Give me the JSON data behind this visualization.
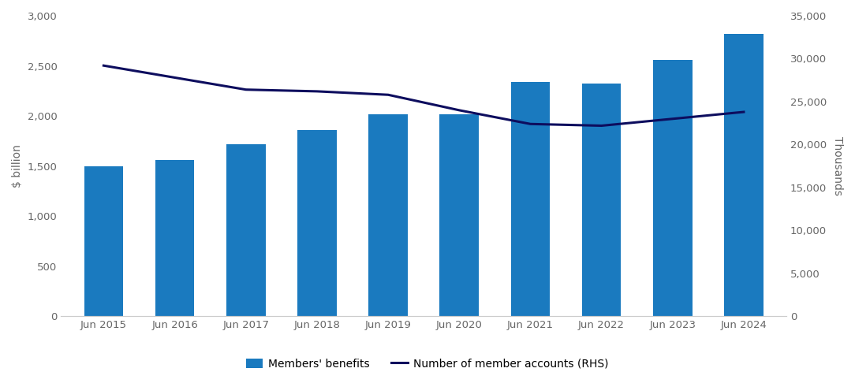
{
  "categories": [
    "Jun 2015",
    "Jun 2016",
    "Jun 2017",
    "Jun 2018",
    "Jun 2019",
    "Jun 2020",
    "Jun 2021",
    "Jun 2022",
    "Jun 2023",
    "Jun 2024"
  ],
  "bar_values": [
    1500,
    1560,
    1720,
    1860,
    2020,
    2020,
    2340,
    2320,
    2560,
    2820
  ],
  "line_values": [
    29200,
    27800,
    26400,
    26200,
    25800,
    24000,
    22400,
    22200,
    23000,
    23800
  ],
  "bar_color": "#1a7abf",
  "line_color": "#0d0d5e",
  "bar_label": "Members' benefits",
  "line_label": "Number of member accounts (RHS)",
  "ylabel_left": "$ billion",
  "ylabel_right": "Thousands",
  "ylim_left": [
    0,
    3000
  ],
  "ylim_right": [
    0,
    35000
  ],
  "yticks_left": [
    0,
    500,
    1000,
    1500,
    2000,
    2500,
    3000
  ],
  "yticks_right": [
    0,
    5000,
    10000,
    15000,
    20000,
    25000,
    30000,
    35000
  ],
  "background_color": "#ffffff",
  "tick_color": "#666666",
  "spine_color": "#cccccc",
  "label_fontsize": 10,
  "tick_fontsize": 9.5
}
